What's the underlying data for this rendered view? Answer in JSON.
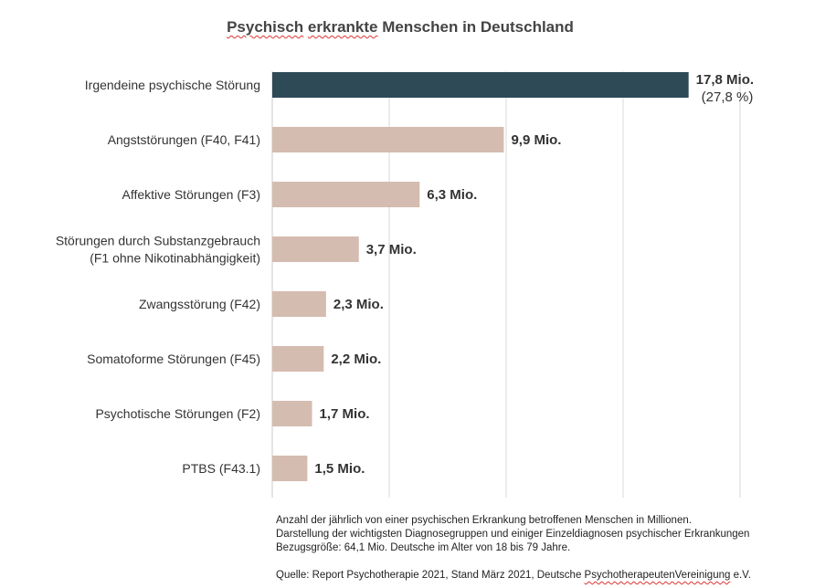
{
  "chart_data": {
    "type": "bar",
    "orientation": "horizontal",
    "title": "Psychisch erkrankte Menschen in Deutschland",
    "categories": [
      "Irgendeine psychische Störung",
      "Angststörungen (F40, F41)",
      "Affektive Störungen (F3)",
      "Störungen durch Substanzgebrauch\n(F1 ohne Nikotinabhängigkeit)",
      "Zwangsstörung (F42)",
      "Somatoforme Störungen (F45)",
      "Psychotische Störungen (F2)",
      "PTBS (F43.1)"
    ],
    "values": [
      17.8,
      9.9,
      6.3,
      3.7,
      2.3,
      2.2,
      1.7,
      1.5
    ],
    "data_labels": [
      "17,8 Mio.",
      "9,9 Mio.",
      "6,3 Mio.",
      "3,7 Mio.",
      "2,3 Mio.",
      "2,2 Mio.",
      "1,7 Mio.",
      "1,5 Mio."
    ],
    "extra_label": "(27,8 %)",
    "xlim": [
      0,
      20
    ],
    "grid": true,
    "colors": {
      "highlight": "#2f4a57",
      "default": "#d5bcb0",
      "grid": "#d9d9d9"
    }
  },
  "notes": {
    "line1": "Anzahl der jährlich von einer psychischen Erkrankung betroffenen Menschen in Millionen.",
    "line2": "Darstellung der wichtigsten Diagnosegruppen und einiger Einzeldiagnosen psychischer Erkrankungen",
    "line3": "Bezugsgröße: 64,1 Mio. Deutsche im Alter von 18 bis 79 Jahre.",
    "source": "Quelle: Report Psychotherapie 2021, Stand März 2021, Deutsche PsychotherapeutenVereinigung e.V."
  }
}
